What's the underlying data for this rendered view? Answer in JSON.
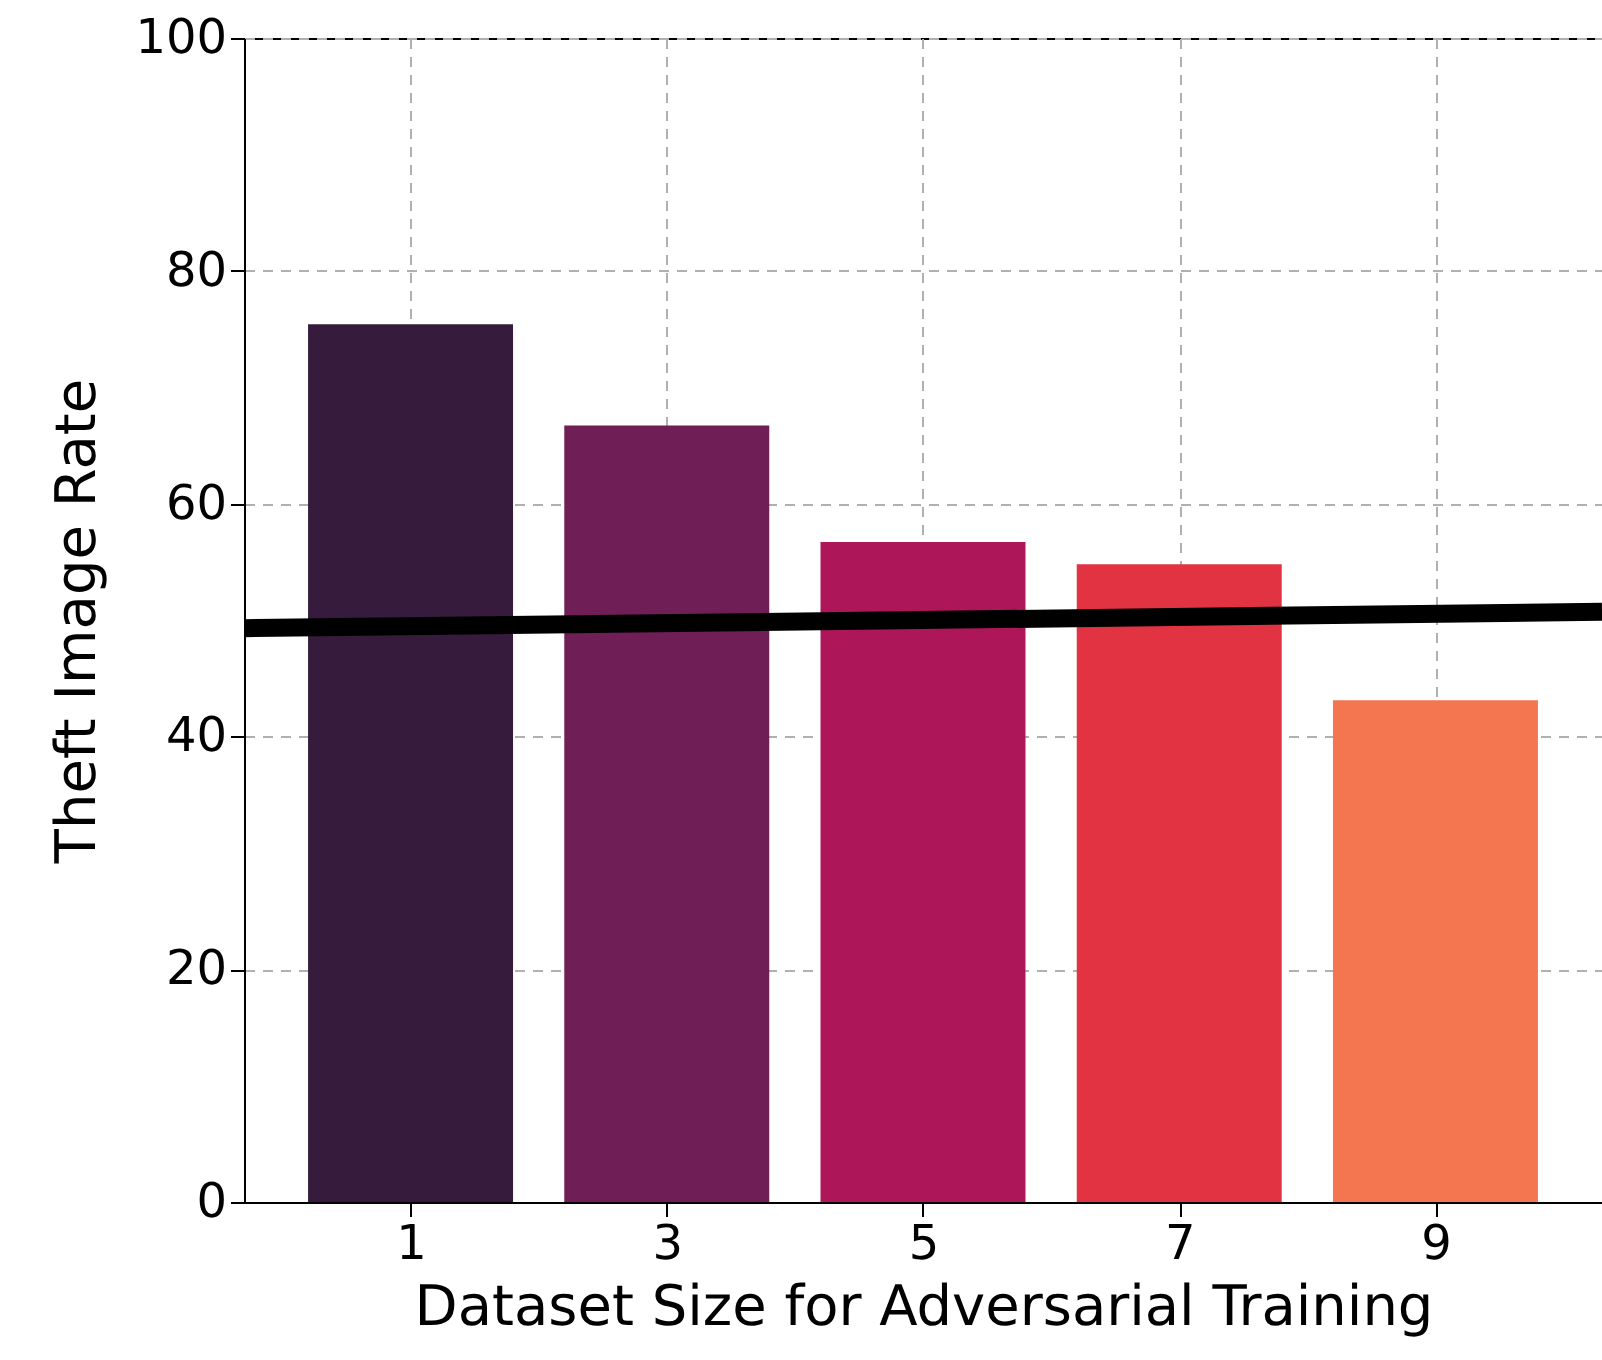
{
  "chart_data": {
    "type": "bar",
    "xlabel": "Dataset Size for Adversarial Training",
    "ylabel": "Theft Image Rate",
    "xlim": [
      -0.3,
      10.3
    ],
    "xticks": [
      {
        "value": 1,
        "label": "1"
      },
      {
        "value": 3,
        "label": "3"
      },
      {
        "value": 5,
        "label": "5"
      },
      {
        "value": 7,
        "label": "7"
      },
      {
        "value": 9,
        "label": "9"
      }
    ],
    "ylim": [
      0,
      100
    ],
    "yticks": [
      0,
      20,
      40,
      60,
      80,
      100
    ],
    "grid": true,
    "series": [
      {
        "x": [
          1,
          3,
          5,
          7,
          9
        ],
        "values": [
          75.4,
          66.7,
          56.7,
          54.8,
          43.1
        ],
        "colors": [
          "#361b3c",
          "#6f1f55",
          "#ad1759",
          "#e13342",
          "#f37651"
        ]
      },
      {
        "type": "line",
        "x": [
          -0.3,
          10.3
        ],
        "values": [
          49.3,
          50.7
        ],
        "color": "#000000"
      }
    ]
  }
}
